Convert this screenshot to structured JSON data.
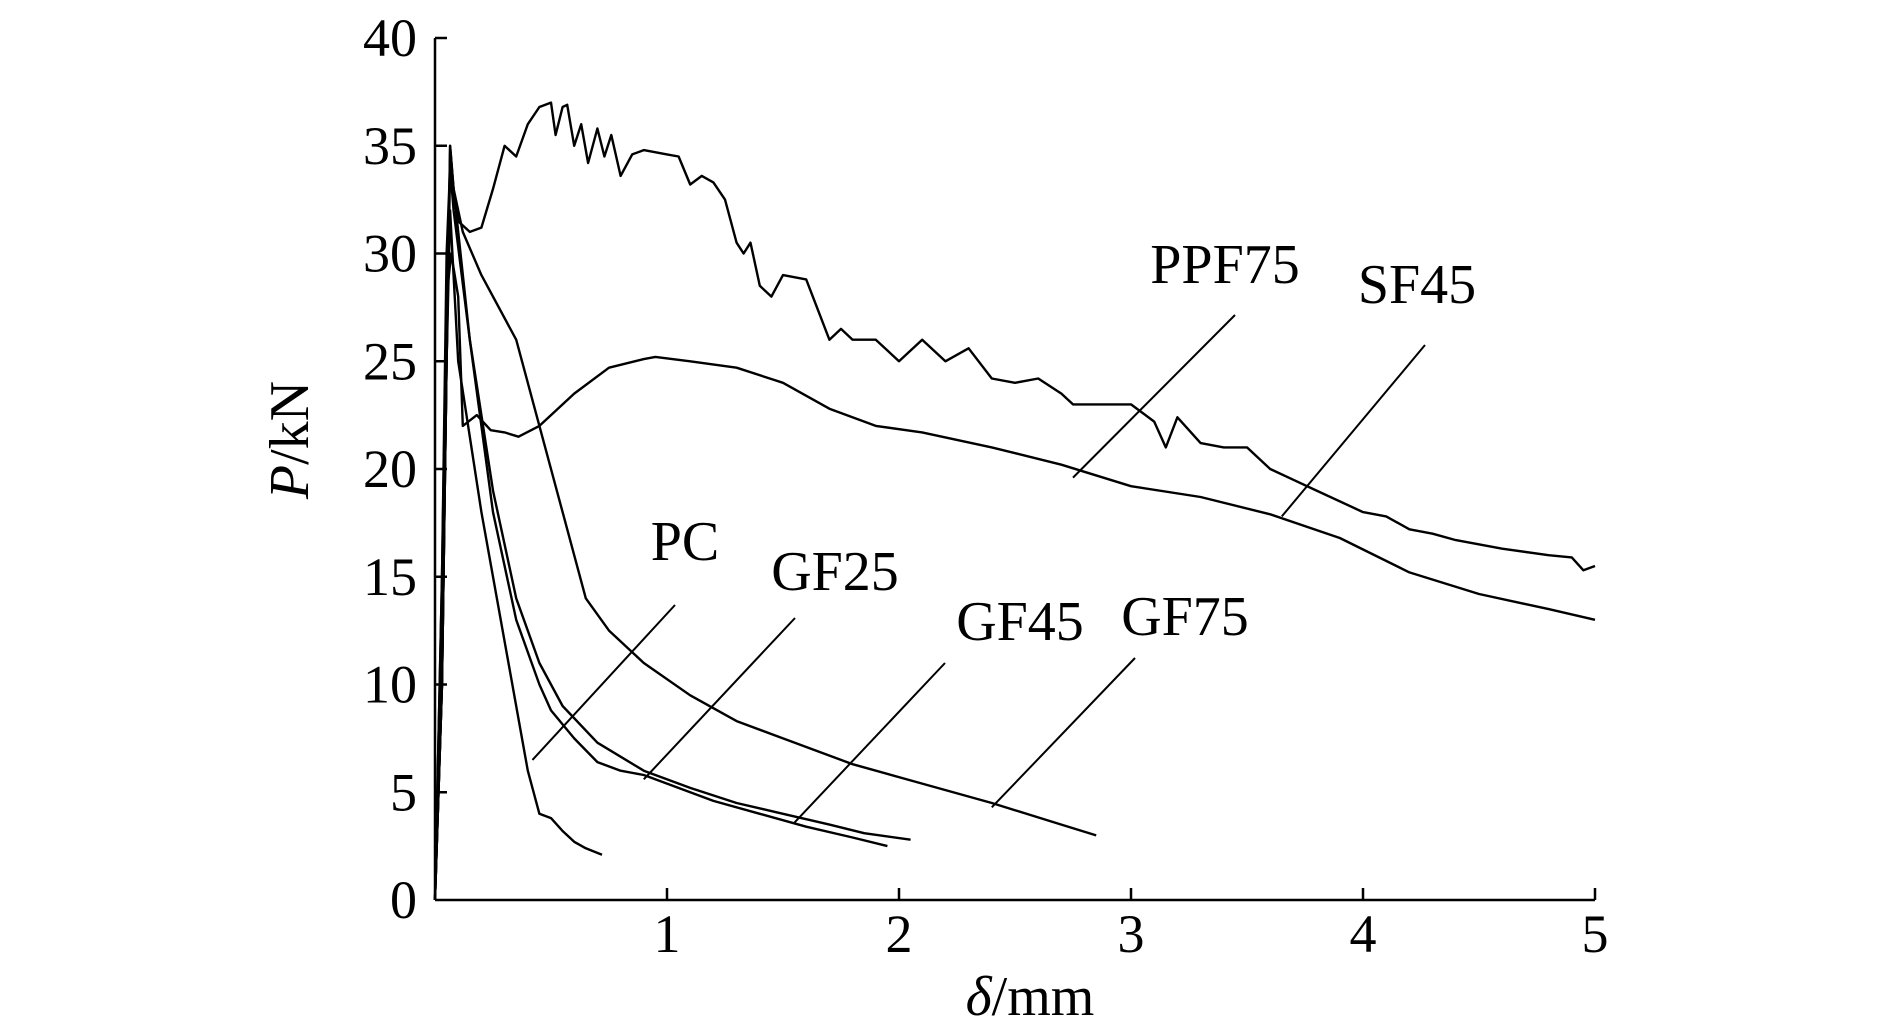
{
  "chart_data": {
    "type": "line",
    "xlabel_symbol": "δ",
    "xlabel_unit": "/mm",
    "ylabel_symbol": "P",
    "ylabel_unit": "/kN",
    "xlim": [
      0,
      5
    ],
    "ylim": [
      0,
      40
    ],
    "xticks": [
      1,
      2,
      3,
      4,
      5
    ],
    "yticks": [
      0,
      5,
      10,
      15,
      20,
      25,
      30,
      35,
      40
    ],
    "grid": false,
    "series": [
      {
        "name": "PC",
        "points": [
          [
            0,
            0
          ],
          [
            0.03,
            10
          ],
          [
            0.05,
            25
          ],
          [
            0.065,
            32
          ],
          [
            0.075,
            30
          ],
          [
            0.1,
            25
          ],
          [
            0.2,
            18
          ],
          [
            0.3,
            12
          ],
          [
            0.4,
            6
          ],
          [
            0.45,
            4
          ],
          [
            0.5,
            3.8
          ],
          [
            0.55,
            3.2
          ],
          [
            0.6,
            2.7
          ],
          [
            0.65,
            2.4
          ],
          [
            0.72,
            2.1
          ]
        ]
      },
      {
        "name": "GF25",
        "points": [
          [
            0,
            0
          ],
          [
            0.03,
            10
          ],
          [
            0.05,
            25
          ],
          [
            0.065,
            35
          ],
          [
            0.08,
            33
          ],
          [
            0.15,
            26
          ],
          [
            0.25,
            18
          ],
          [
            0.35,
            13
          ],
          [
            0.45,
            10
          ],
          [
            0.5,
            8.8
          ],
          [
            0.6,
            7.5
          ],
          [
            0.7,
            6.4
          ],
          [
            0.8,
            6
          ],
          [
            0.9,
            5.8
          ],
          [
            1,
            5.4
          ],
          [
            1.2,
            4.6
          ],
          [
            1.4,
            4
          ],
          [
            1.6,
            3.4
          ],
          [
            1.8,
            2.9
          ],
          [
            1.95,
            2.5
          ]
        ]
      },
      {
        "name": "GF45",
        "points": [
          [
            0,
            0
          ],
          [
            0.03,
            10
          ],
          [
            0.05,
            25
          ],
          [
            0.065,
            34
          ],
          [
            0.08,
            32
          ],
          [
            0.15,
            26
          ],
          [
            0.25,
            19
          ],
          [
            0.35,
            14
          ],
          [
            0.45,
            11
          ],
          [
            0.55,
            9
          ],
          [
            0.7,
            7.3
          ],
          [
            0.9,
            6
          ],
          [
            1.1,
            5.2
          ],
          [
            1.3,
            4.5
          ],
          [
            1.5,
            4
          ],
          [
            1.7,
            3.5
          ],
          [
            1.85,
            3.1
          ],
          [
            2.05,
            2.8
          ]
        ]
      },
      {
        "name": "GF75",
        "points": [
          [
            0,
            0
          ],
          [
            0.03,
            10
          ],
          [
            0.05,
            25
          ],
          [
            0.065,
            35
          ],
          [
            0.08,
            33
          ],
          [
            0.12,
            31
          ],
          [
            0.2,
            29
          ],
          [
            0.35,
            26
          ],
          [
            0.45,
            22
          ],
          [
            0.55,
            18
          ],
          [
            0.65,
            14
          ],
          [
            0.75,
            12.5
          ],
          [
            0.9,
            11
          ],
          [
            1.1,
            9.5
          ],
          [
            1.3,
            8.3
          ],
          [
            1.5,
            7.5
          ],
          [
            1.8,
            6.3
          ],
          [
            2.1,
            5.4
          ],
          [
            2.4,
            4.5
          ],
          [
            2.7,
            3.5
          ],
          [
            2.85,
            3
          ]
        ]
      },
      {
        "name": "PPF75",
        "points": [
          [
            0,
            0
          ],
          [
            0.03,
            15
          ],
          [
            0.05,
            28
          ],
          [
            0.07,
            30
          ],
          [
            0.1,
            28
          ],
          [
            0.12,
            22
          ],
          [
            0.18,
            22.5
          ],
          [
            0.24,
            21.8
          ],
          [
            0.3,
            21.7
          ],
          [
            0.36,
            21.5
          ],
          [
            0.45,
            22
          ],
          [
            0.6,
            23.5
          ],
          [
            0.75,
            24.7
          ],
          [
            0.9,
            25.1
          ],
          [
            0.95,
            25.2
          ],
          [
            1.1,
            25
          ],
          [
            1.3,
            24.7
          ],
          [
            1.5,
            24
          ],
          [
            1.7,
            22.8
          ],
          [
            1.9,
            22
          ],
          [
            2.1,
            21.7
          ],
          [
            2.4,
            21
          ],
          [
            2.7,
            20.2
          ],
          [
            3,
            19.2
          ],
          [
            3.3,
            18.7
          ],
          [
            3.6,
            17.9
          ],
          [
            3.9,
            16.8
          ],
          [
            4.2,
            15.2
          ],
          [
            4.5,
            14.2
          ],
          [
            4.8,
            13.5
          ],
          [
            5,
            13
          ]
        ]
      },
      {
        "name": "SF45",
        "points": [
          [
            0,
            0
          ],
          [
            0.03,
            15
          ],
          [
            0.05,
            30
          ],
          [
            0.065,
            34
          ],
          [
            0.08,
            33
          ],
          [
            0.1,
            31.5
          ],
          [
            0.15,
            31
          ],
          [
            0.2,
            31.2
          ],
          [
            0.25,
            33
          ],
          [
            0.3,
            35
          ],
          [
            0.35,
            34.5
          ],
          [
            0.4,
            36
          ],
          [
            0.45,
            36.8
          ],
          [
            0.5,
            37
          ],
          [
            0.52,
            35.5
          ],
          [
            0.55,
            36.8
          ],
          [
            0.57,
            36.9
          ],
          [
            0.6,
            35
          ],
          [
            0.63,
            36
          ],
          [
            0.66,
            34.2
          ],
          [
            0.7,
            35.8
          ],
          [
            0.73,
            34.5
          ],
          [
            0.76,
            35.5
          ],
          [
            0.8,
            33.6
          ],
          [
            0.85,
            34.6
          ],
          [
            0.9,
            34.8
          ],
          [
            1,
            34.6
          ],
          [
            1.05,
            34.5
          ],
          [
            1.1,
            33.2
          ],
          [
            1.15,
            33.6
          ],
          [
            1.2,
            33.3
          ],
          [
            1.25,
            32.5
          ],
          [
            1.3,
            30.5
          ],
          [
            1.33,
            30
          ],
          [
            1.36,
            30.5
          ],
          [
            1.4,
            28.5
          ],
          [
            1.45,
            28
          ],
          [
            1.5,
            29
          ],
          [
            1.6,
            28.8
          ],
          [
            1.7,
            26
          ],
          [
            1.75,
            26.5
          ],
          [
            1.8,
            26
          ],
          [
            1.9,
            26
          ],
          [
            2,
            25
          ],
          [
            2.1,
            26
          ],
          [
            2.2,
            25
          ],
          [
            2.3,
            25.6
          ],
          [
            2.4,
            24.2
          ],
          [
            2.5,
            24
          ],
          [
            2.6,
            24.2
          ],
          [
            2.7,
            23.5
          ],
          [
            2.75,
            23
          ],
          [
            2.8,
            23
          ],
          [
            3,
            23
          ],
          [
            3.1,
            22.2
          ],
          [
            3.15,
            21
          ],
          [
            3.2,
            22.4
          ],
          [
            3.3,
            21.2
          ],
          [
            3.4,
            21
          ],
          [
            3.5,
            21
          ],
          [
            3.6,
            20
          ],
          [
            3.7,
            19.5
          ],
          [
            3.8,
            19
          ],
          [
            4,
            18
          ],
          [
            4.1,
            17.8
          ],
          [
            4.2,
            17.2
          ],
          [
            4.3,
            17
          ],
          [
            4.4,
            16.7
          ],
          [
            4.6,
            16.3
          ],
          [
            4.8,
            16
          ],
          [
            4.9,
            15.9
          ],
          [
            4.95,
            15.3
          ],
          [
            5,
            15.5
          ]
        ]
      }
    ],
    "labels": {
      "PC": "PC",
      "GF25": "GF25",
      "GF45": "GF45",
      "GF75": "GF75",
      "PPF75": "PPF75",
      "SF45": "SF45"
    }
  }
}
